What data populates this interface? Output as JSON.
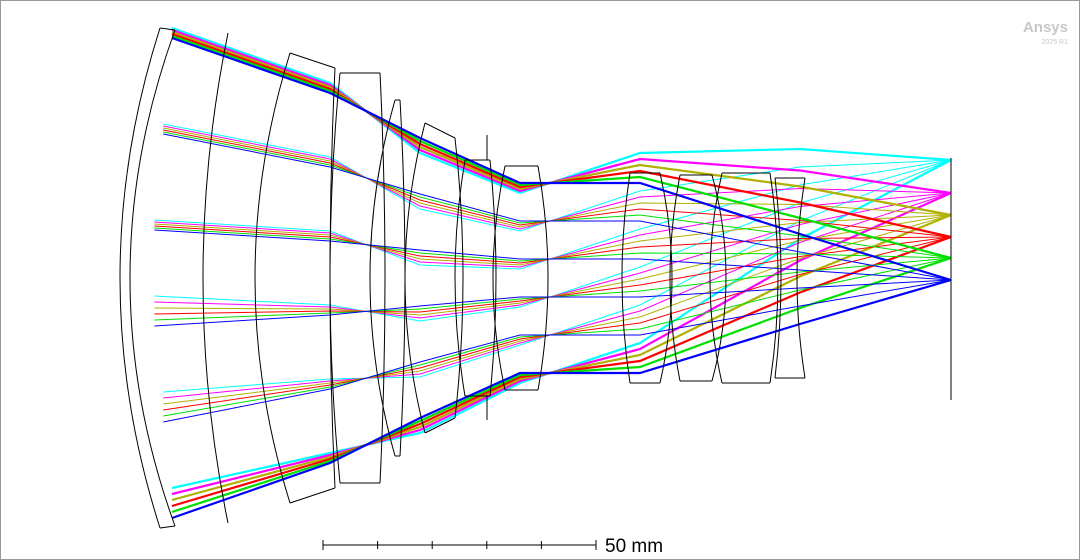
{
  "logo": {
    "name": "Ansys",
    "version": "2025 R1"
  },
  "scale_bar": {
    "label": "50 mm"
  }
}
